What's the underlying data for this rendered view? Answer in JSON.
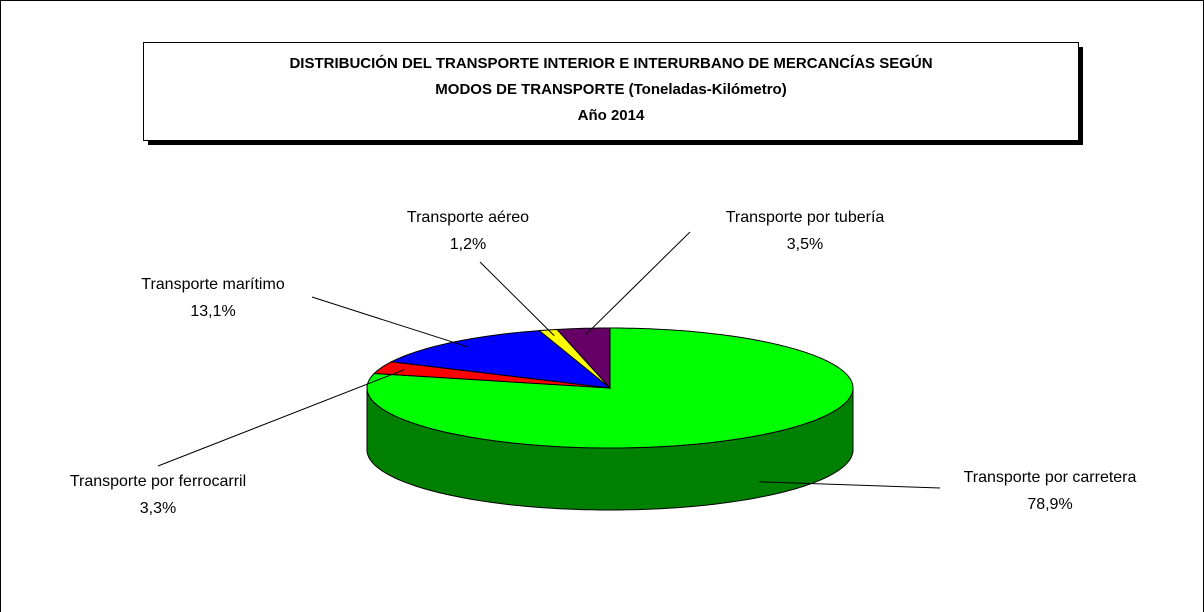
{
  "chart_data": {
    "type": "pie3d",
    "title": [
      "DISTRIBUCIÓN DEL TRANSPORTE INTERIOR E INTERURBANO DE MERCANCÍAS SEGÚN",
      "MODOS DE TRANSPORTE (Toneladas-Kilómetro)",
      "Año 2014"
    ],
    "categories": [
      "Transporte por carretera",
      "Transporte por ferrocarril",
      "Transporte marítimo",
      "Transporte aéreo",
      "Transporte por tubería"
    ],
    "values": [
      78.9,
      3.3,
      13.1,
      1.2,
      3.5
    ],
    "value_labels": [
      "78,9%",
      "3,3%",
      "13,1%",
      "1,2%",
      "3,5%"
    ],
    "colors": [
      "#00ff00",
      "#ff0000",
      "#0000ff",
      "#ffff00",
      "#660066"
    ]
  }
}
